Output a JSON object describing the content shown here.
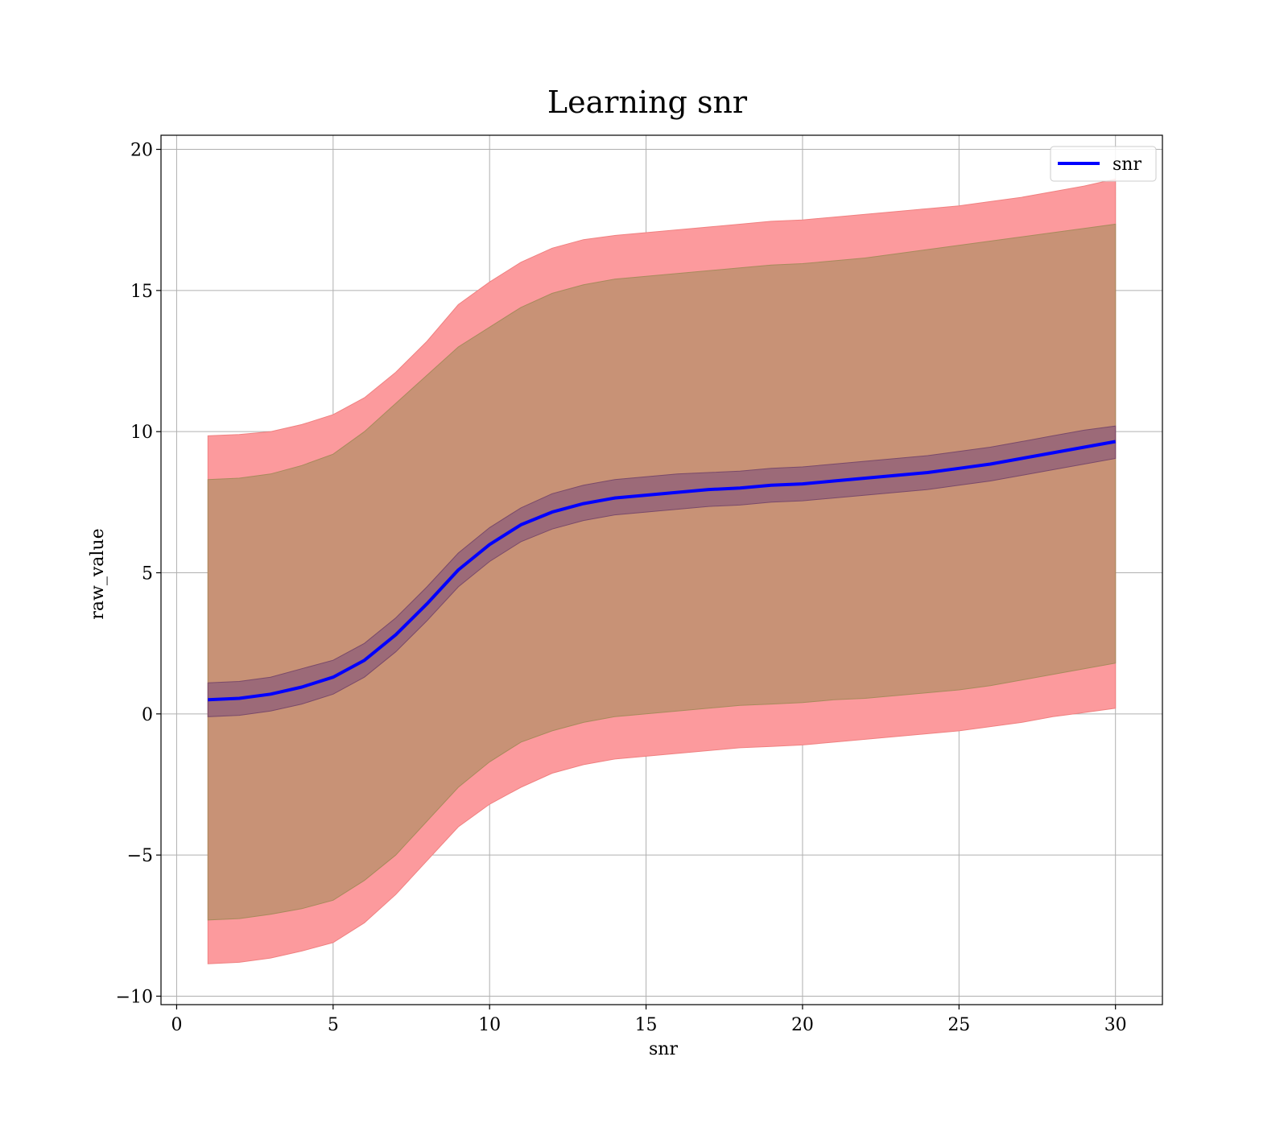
{
  "chart_data": {
    "type": "area",
    "title": "Learning snr",
    "xlabel": "snr",
    "ylabel": "raw_value",
    "xlim": [
      -0.5,
      31.5
    ],
    "ylim": [
      -10.3,
      20.5
    ],
    "xticks": [
      0,
      5,
      10,
      15,
      20,
      25,
      30
    ],
    "xtick_labels": [
      "0",
      "5",
      "10",
      "15",
      "20",
      "25",
      "30"
    ],
    "yticks": [
      -10,
      -5,
      0,
      5,
      10,
      15,
      20
    ],
    "ytick_labels": [
      "−10",
      "−5",
      "0",
      "5",
      "10",
      "15",
      "20"
    ],
    "grid": true,
    "legend": {
      "position": "top-right",
      "entries": [
        "snr"
      ]
    },
    "colors": {
      "line": "#0000ff",
      "outer_band": "#fc9a9d",
      "middle_band": "#c89276",
      "inner_band": "#9c6a78",
      "grid": "#b0b0b0"
    },
    "x": [
      1,
      2,
      3,
      4,
      5,
      6,
      7,
      8,
      9,
      10,
      11,
      12,
      13,
      14,
      15,
      16,
      17,
      18,
      19,
      20,
      21,
      22,
      23,
      24,
      25,
      26,
      27,
      28,
      29,
      30
    ],
    "series": [
      {
        "name": "snr",
        "role": "mean",
        "values": [
          0.5,
          0.55,
          0.7,
          0.95,
          1.3,
          1.9,
          2.8,
          3.9,
          5.1,
          6.0,
          6.7,
          7.15,
          7.45,
          7.65,
          7.75,
          7.85,
          7.95,
          8.0,
          8.1,
          8.15,
          8.25,
          8.35,
          8.45,
          8.55,
          8.7,
          8.85,
          9.05,
          9.25,
          9.45,
          9.65
        ]
      },
      {
        "role": "inner_band",
        "upper": [
          1.1,
          1.15,
          1.3,
          1.6,
          1.9,
          2.5,
          3.4,
          4.5,
          5.7,
          6.6,
          7.3,
          7.8,
          8.1,
          8.3,
          8.4,
          8.5,
          8.55,
          8.6,
          8.7,
          8.75,
          8.85,
          8.95,
          9.05,
          9.15,
          9.3,
          9.45,
          9.65,
          9.85,
          10.05,
          10.2
        ],
        "lower": [
          -0.1,
          -0.05,
          0.1,
          0.35,
          0.7,
          1.3,
          2.2,
          3.3,
          4.5,
          5.4,
          6.1,
          6.55,
          6.85,
          7.05,
          7.15,
          7.25,
          7.35,
          7.4,
          7.5,
          7.55,
          7.65,
          7.75,
          7.85,
          7.95,
          8.1,
          8.25,
          8.45,
          8.65,
          8.85,
          9.05
        ]
      },
      {
        "role": "middle_band",
        "upper": [
          8.3,
          8.35,
          8.5,
          8.8,
          9.2,
          10.0,
          11.0,
          12.0,
          13.0,
          13.7,
          14.4,
          14.9,
          15.2,
          15.4,
          15.5,
          15.6,
          15.7,
          15.8,
          15.9,
          15.95,
          16.05,
          16.15,
          16.3,
          16.45,
          16.6,
          16.75,
          16.9,
          17.05,
          17.2,
          17.35
        ],
        "lower": [
          -7.3,
          -7.25,
          -7.1,
          -6.9,
          -6.6,
          -5.9,
          -5.0,
          -3.8,
          -2.6,
          -1.7,
          -1.0,
          -0.6,
          -0.3,
          -0.1,
          0.0,
          0.1,
          0.2,
          0.3,
          0.35,
          0.4,
          0.5,
          0.55,
          0.65,
          0.75,
          0.85,
          1.0,
          1.2,
          1.4,
          1.6,
          1.8
        ]
      },
      {
        "role": "outer_band",
        "upper": [
          9.85,
          9.9,
          10.0,
          10.25,
          10.6,
          11.2,
          12.1,
          13.2,
          14.5,
          15.3,
          16.0,
          16.5,
          16.8,
          16.95,
          17.05,
          17.15,
          17.25,
          17.35,
          17.45,
          17.5,
          17.6,
          17.7,
          17.8,
          17.9,
          18.0,
          18.15,
          18.3,
          18.5,
          18.7,
          18.95
        ],
        "lower": [
          -8.85,
          -8.8,
          -8.65,
          -8.4,
          -8.1,
          -7.4,
          -6.4,
          -5.2,
          -4.0,
          -3.2,
          -2.6,
          -2.1,
          -1.8,
          -1.6,
          -1.5,
          -1.4,
          -1.3,
          -1.2,
          -1.15,
          -1.1,
          -1.0,
          -0.9,
          -0.8,
          -0.7,
          -0.6,
          -0.45,
          -0.3,
          -0.1,
          0.05,
          0.2
        ]
      }
    ]
  }
}
